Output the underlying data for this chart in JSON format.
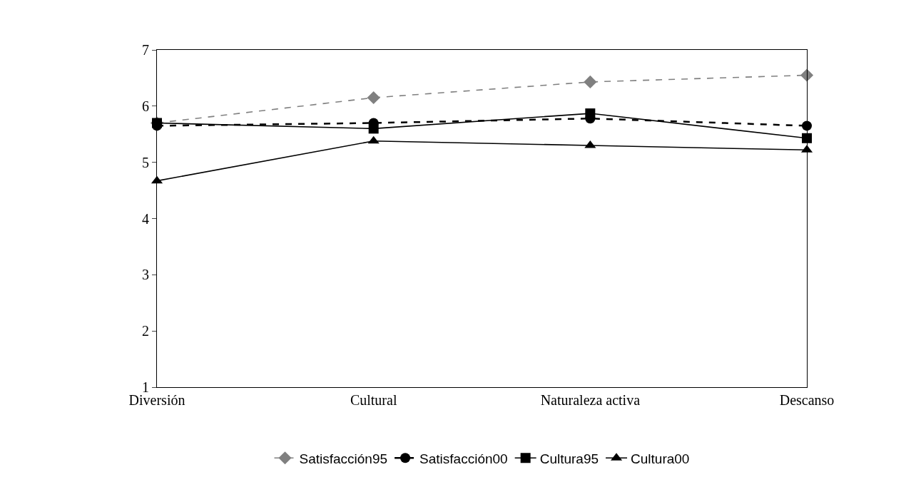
{
  "chart_data": {
    "type": "line",
    "categories": [
      "Diversión",
      "Cultural",
      "Naturaleza activa",
      "Descanso"
    ],
    "ylim": [
      1,
      7
    ],
    "yticks": [
      1,
      2,
      3,
      4,
      5,
      6,
      7
    ],
    "legend": "bottom",
    "series": [
      {
        "name": "Satisfacción95",
        "color": "#808080",
        "values": [
          5.7,
          6.15,
          6.43,
          6.55
        ],
        "marker": "diamond",
        "line_style": "dashed"
      },
      {
        "name": "Satisfacción00",
        "color": "#000000",
        "values": [
          5.65,
          5.7,
          5.78,
          5.65
        ],
        "marker": "circle",
        "line_style": "dashed"
      },
      {
        "name": "Cultura95",
        "color": "#000000",
        "values": [
          5.7,
          5.6,
          5.87,
          5.43
        ],
        "marker": "square",
        "line_style": "solid"
      },
      {
        "name": "Cultura00",
        "color": "#000000",
        "values": [
          4.67,
          5.38,
          5.3,
          5.22
        ],
        "marker": "triangle",
        "line_style": "solid"
      }
    ]
  }
}
